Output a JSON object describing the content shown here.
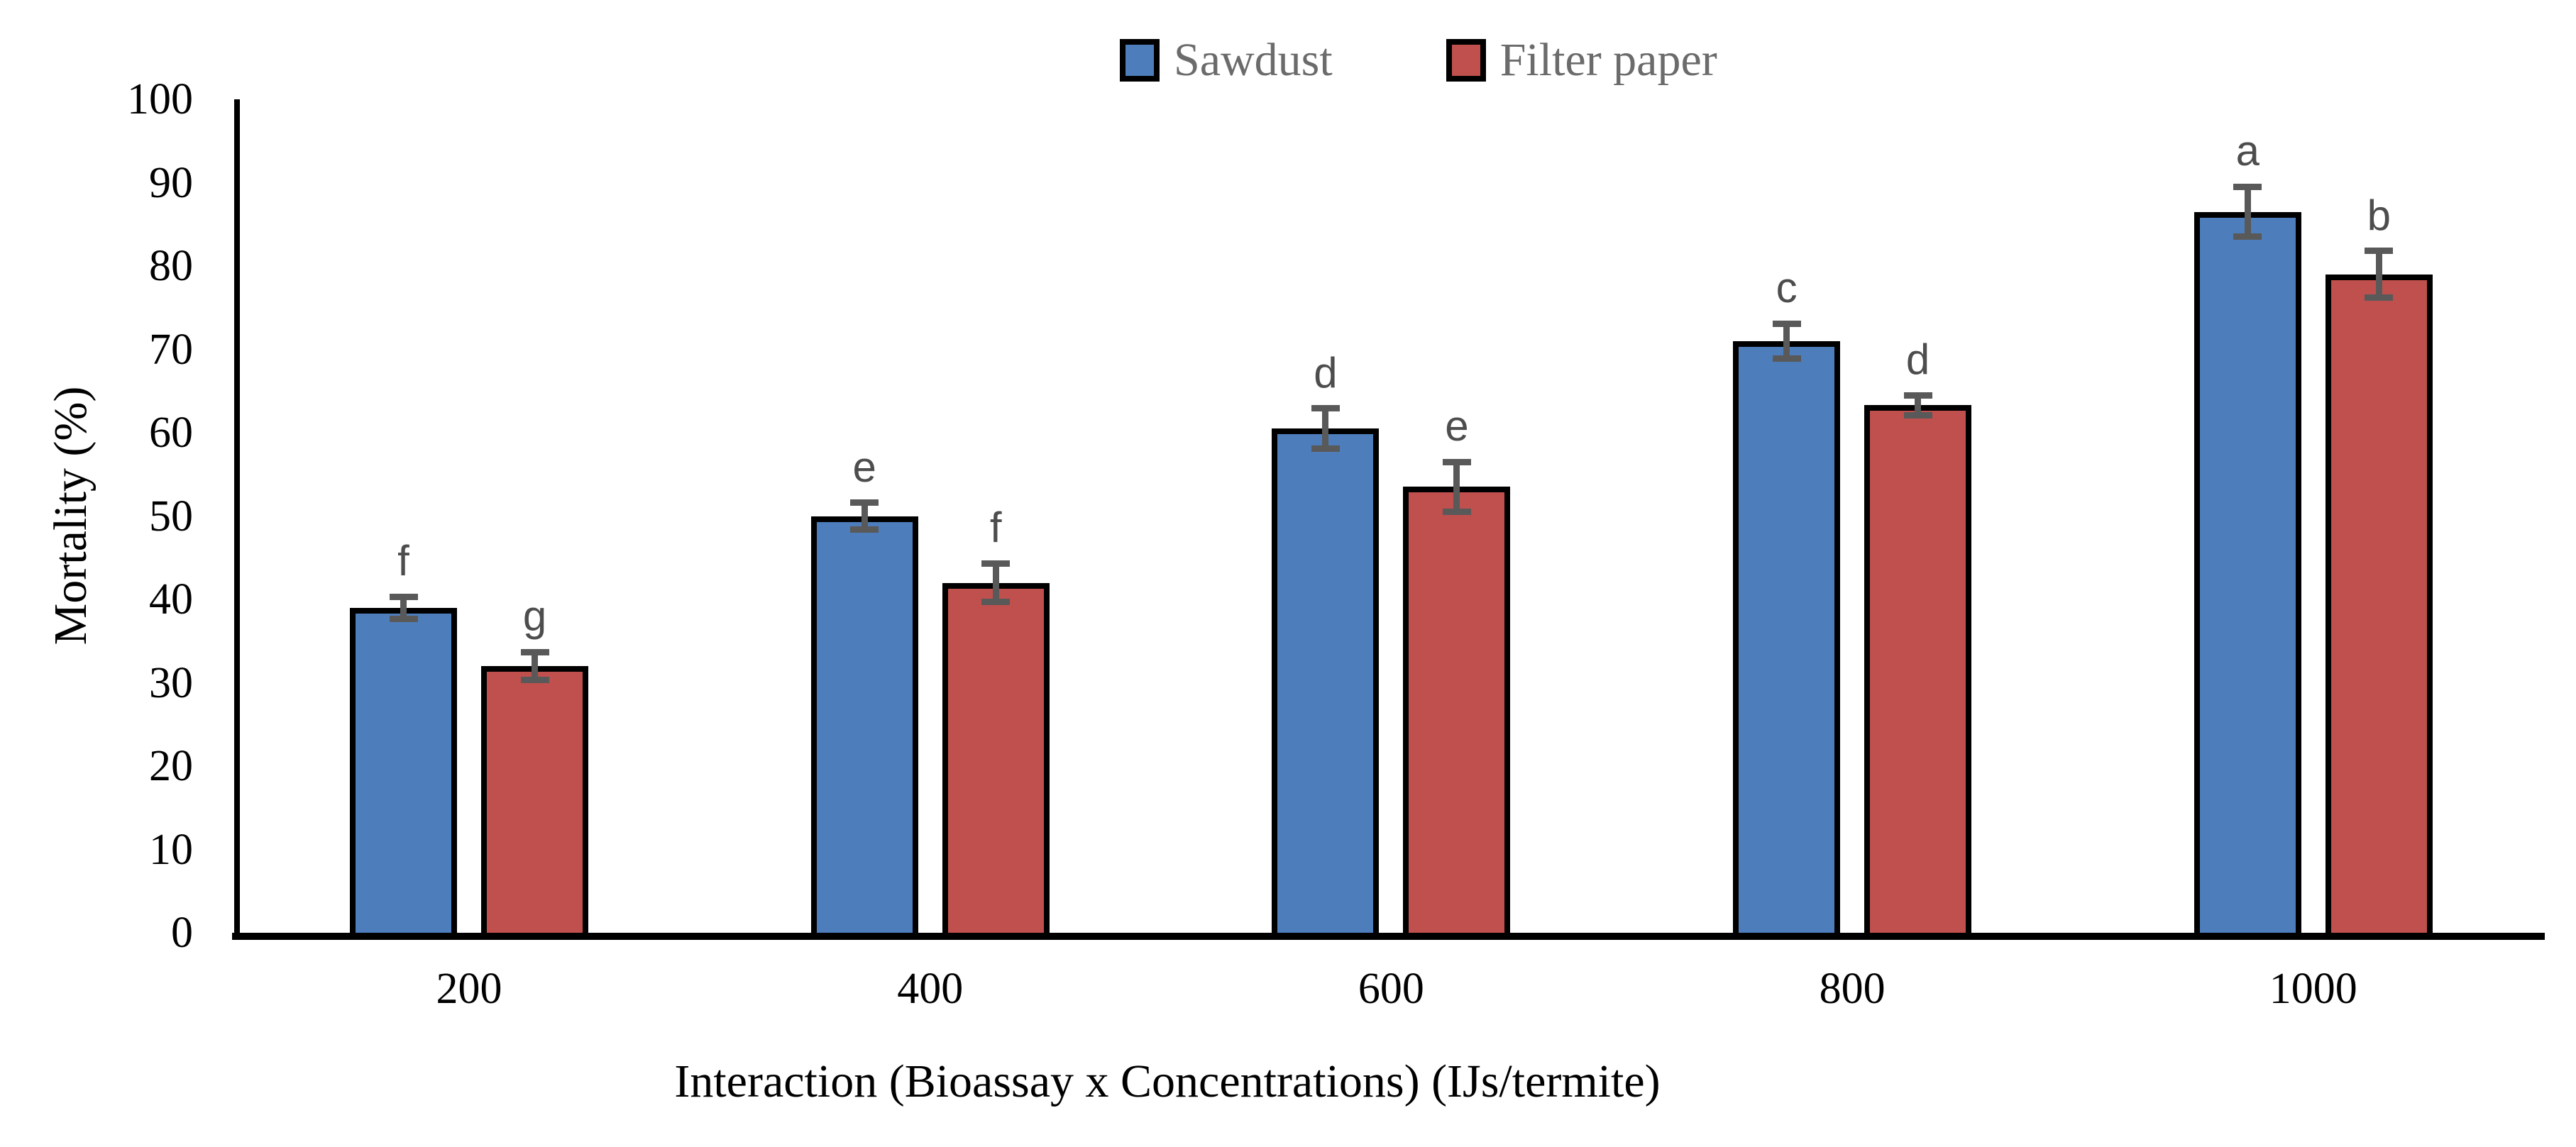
{
  "chart_data": {
    "type": "bar",
    "title": "",
    "xlabel": "Interaction (Bioassay x Concentrations) (IJs/termite)",
    "ylabel": "Mortality (%)",
    "ylim": [
      0,
      100
    ],
    "yticks": [
      0,
      10,
      20,
      30,
      40,
      50,
      60,
      70,
      80,
      90,
      100
    ],
    "categories": [
      "200",
      "400",
      "600",
      "800",
      "1000"
    ],
    "grid": false,
    "legend_position": "top-center",
    "bar_border_color": "#000000",
    "error_bar_color": "#595959",
    "letter_color": "#4d4d4d",
    "series": [
      {
        "name": "Sawdust",
        "color": "#4D7EBB",
        "values": [
          39,
          50,
          60.5,
          71,
          86.5
        ],
        "errors": [
          1.3,
          1.6,
          2.4,
          2.1,
          3.0
        ],
        "letters": [
          "f",
          "e",
          "d",
          "c",
          "a"
        ]
      },
      {
        "name": "Filter paper",
        "color": "#C0504D",
        "values": [
          32,
          42,
          53.5,
          63.3,
          79
        ],
        "errors": [
          1.7,
          2.3,
          3.0,
          1.2,
          2.8
        ],
        "letters": [
          "g",
          "f",
          "e",
          "d",
          "b"
        ]
      }
    ]
  }
}
